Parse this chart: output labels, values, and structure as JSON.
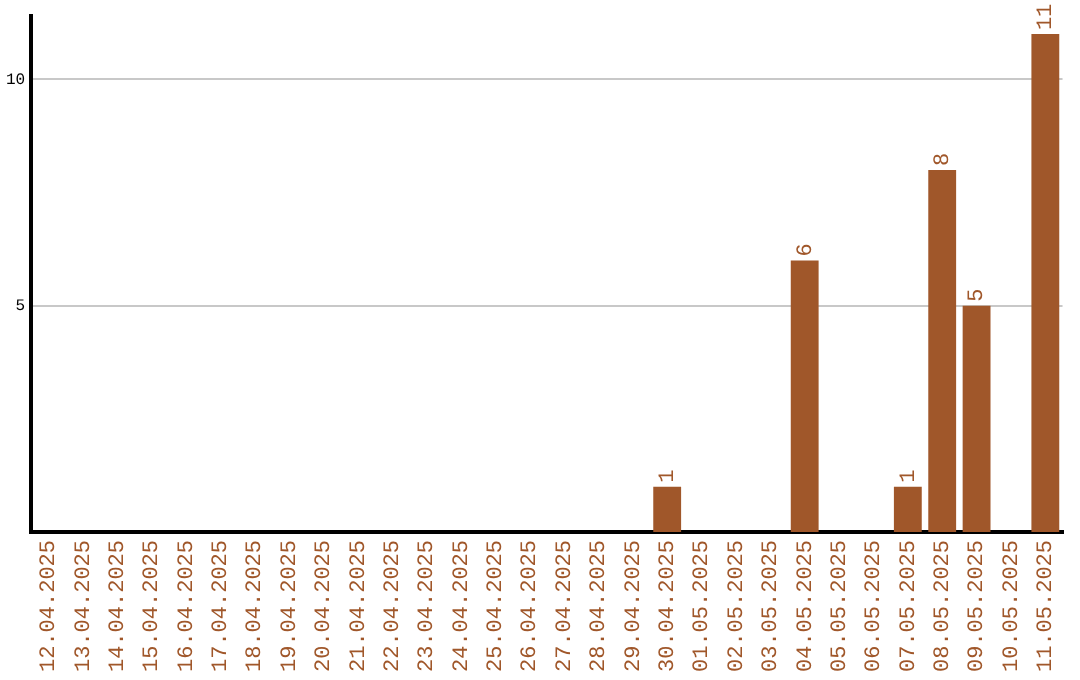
{
  "chart_data": {
    "type": "bar",
    "categories": [
      "12.04.2025",
      "13.04.2025",
      "14.04.2025",
      "15.04.2025",
      "16.04.2025",
      "17.04.2025",
      "18.04.2025",
      "19.04.2025",
      "20.04.2025",
      "21.04.2025",
      "22.04.2025",
      "23.04.2025",
      "24.04.2025",
      "25.04.2025",
      "26.04.2025",
      "27.04.2025",
      "28.04.2025",
      "29.04.2025",
      "30.04.2025",
      "01.05.2025",
      "02.05.2025",
      "03.05.2025",
      "04.05.2025",
      "05.05.2025",
      "06.05.2025",
      "07.05.2025",
      "08.05.2025",
      "09.05.2025",
      "10.05.2025",
      "11.05.2025"
    ],
    "values": [
      0,
      0,
      0,
      0,
      0,
      0,
      0,
      0,
      0,
      0,
      0,
      0,
      0,
      0,
      0,
      0,
      0,
      0,
      1,
      0,
      0,
      0,
      6,
      0,
      0,
      1,
      8,
      5,
      0,
      11
    ],
    "value_labels": [
      null,
      null,
      null,
      null,
      null,
      null,
      null,
      null,
      null,
      null,
      null,
      null,
      null,
      null,
      null,
      null,
      null,
      null,
      "1",
      null,
      null,
      null,
      "6",
      null,
      null,
      "1",
      "8",
      "5",
      null,
      "11"
    ],
    "color": "#a0572a",
    "ylim": [
      0,
      11.4
    ],
    "yticks": [
      5,
      10
    ],
    "grid": "y",
    "legend": false
  }
}
